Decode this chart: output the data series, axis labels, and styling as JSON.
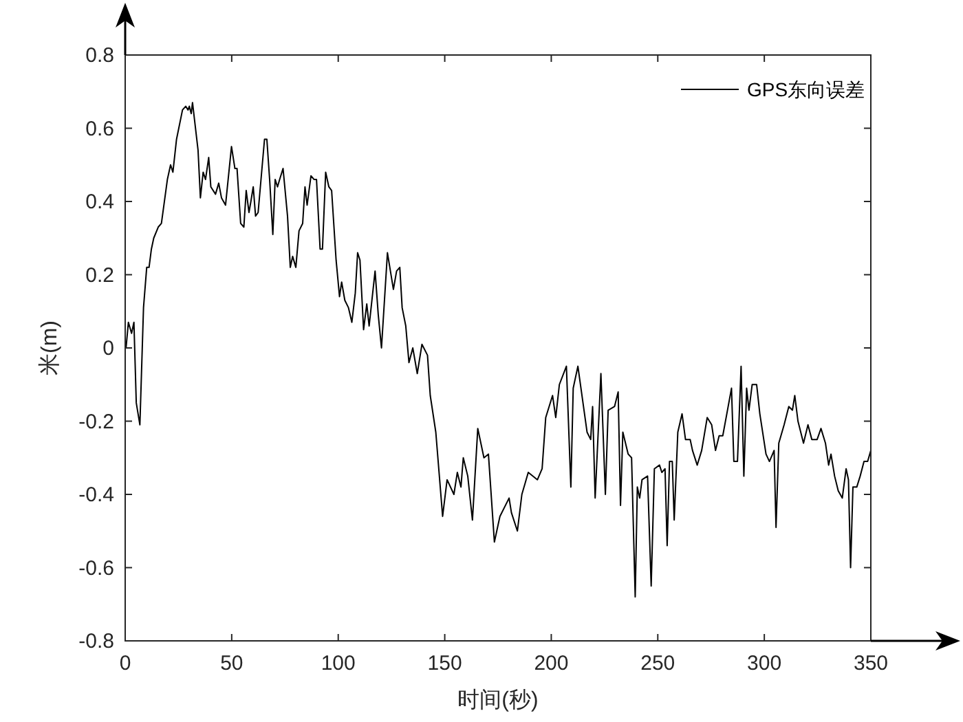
{
  "chart_data": {
    "type": "line",
    "xlabel": "时间(秒)",
    "ylabel": "米(m)",
    "xlim": [
      0,
      350
    ],
    "ylim": [
      -0.8,
      0.8
    ],
    "xticks": [
      0,
      50,
      100,
      150,
      200,
      250,
      300,
      350
    ],
    "yticks": [
      -0.8,
      -0.6,
      -0.4,
      -0.2,
      0,
      0.2,
      0.4,
      0.6,
      0.8
    ],
    "grid": false,
    "legend": "top right",
    "series": [
      {
        "name": "GPS东向误差",
        "color": "#000000",
        "x": [
          0.4,
          1.5,
          3.0,
          4.1,
          5.2,
          6.9,
          8.6,
          10.1,
          11.2,
          12.3,
          13.4,
          15.5,
          17.0,
          19.8,
          21.3,
          22.4,
          24.1,
          26.9,
          28.4,
          29.5,
          30.1,
          31.0,
          31.6,
          34.2,
          35.3,
          36.6,
          37.7,
          39.2,
          40.2,
          42.4,
          43.9,
          45.2,
          47.1,
          49.9,
          51.5,
          52.5,
          54.2,
          55.7,
          56.8,
          58.1,
          59.0,
          60.1,
          61.2,
          62.4,
          63.9,
          65.4,
          66.5,
          67.8,
          69.3,
          70.4,
          71.5,
          72.5,
          74.1,
          76.2,
          77.5,
          78.6,
          80.1,
          81.6,
          83.3,
          84.4,
          85.4,
          87.2,
          88.7,
          89.8,
          91.5,
          92.6,
          94.1,
          95.6,
          96.9,
          99.0,
          100.6,
          101.6,
          103.1,
          104.8,
          106.4,
          108.0,
          109.1,
          110.2,
          111.9,
          113.4,
          114.5,
          117.3,
          118.8,
          120.3,
          123.1,
          125.9,
          127.4,
          128.9,
          130.0,
          131.7,
          133.2,
          135.0,
          137.1,
          139.3,
          141.9,
          143.2,
          145.8,
          149.0,
          151.1,
          154.3,
          155.9,
          157.6,
          158.7,
          160.8,
          163.0,
          165.5,
          168.4,
          170.5,
          173.3,
          175.9,
          180.2,
          181.3,
          184.1,
          186.2,
          189.2,
          193.5,
          195.7,
          197.4,
          200.6,
          202.1,
          203.8,
          207.1,
          209.2,
          210.3,
          212.5,
          216.8,
          218.5,
          219.4,
          220.6,
          223.3,
          225.4,
          226.7,
          229.7,
          231.4,
          232.5,
          233.6,
          236.1,
          237.7,
          239.4,
          240.4,
          241.5,
          242.6,
          245.2,
          246.9,
          248.4,
          250.8,
          251.9,
          253.4,
          254.4,
          255.5,
          256.8,
          257.7,
          259.4,
          261.4,
          263.0,
          265.2,
          266.3,
          268.5,
          270.6,
          273.2,
          275.3,
          277.1,
          278.8,
          280.5,
          282.4,
          284.6,
          285.7,
          287.4,
          289.1,
          290.4,
          291.7,
          292.8,
          294.3,
          296.4,
          297.9,
          300.8,
          302.4,
          304.6,
          305.5,
          306.8,
          309.3,
          311.5,
          313.2,
          314.3,
          315.8,
          318.4,
          320.5,
          322.3,
          324.8,
          326.6,
          328.7,
          330.2,
          331.3,
          333.0,
          334.7,
          336.6,
          338.4,
          339.5,
          340.5,
          341.6,
          343.4,
          345.0,
          346.8,
          348.5,
          350.0
        ],
        "values": [
          0.0,
          0.07,
          0.04,
          0.07,
          -0.15,
          -0.21,
          0.11,
          0.22,
          0.22,
          0.27,
          0.3,
          0.33,
          0.34,
          0.46,
          0.5,
          0.48,
          0.57,
          0.65,
          0.66,
          0.65,
          0.66,
          0.64,
          0.67,
          0.54,
          0.41,
          0.48,
          0.46,
          0.52,
          0.44,
          0.42,
          0.45,
          0.41,
          0.39,
          0.55,
          0.49,
          0.49,
          0.34,
          0.33,
          0.43,
          0.37,
          0.4,
          0.44,
          0.36,
          0.37,
          0.47,
          0.57,
          0.57,
          0.46,
          0.31,
          0.46,
          0.44,
          0.46,
          0.49,
          0.36,
          0.22,
          0.25,
          0.22,
          0.32,
          0.34,
          0.44,
          0.39,
          0.47,
          0.46,
          0.46,
          0.27,
          0.27,
          0.48,
          0.44,
          0.43,
          0.24,
          0.14,
          0.18,
          0.13,
          0.11,
          0.07,
          0.15,
          0.26,
          0.24,
          0.05,
          0.12,
          0.06,
          0.21,
          0.09,
          0.0,
          0.26,
          0.16,
          0.21,
          0.22,
          0.11,
          0.06,
          -0.04,
          0.0,
          -0.07,
          0.01,
          -0.02,
          -0.13,
          -0.23,
          -0.46,
          -0.36,
          -0.4,
          -0.34,
          -0.38,
          -0.3,
          -0.35,
          -0.47,
          -0.22,
          -0.3,
          -0.29,
          -0.53,
          -0.46,
          -0.41,
          -0.45,
          -0.5,
          -0.4,
          -0.34,
          -0.36,
          -0.33,
          -0.19,
          -0.13,
          -0.19,
          -0.1,
          -0.05,
          -0.38,
          -0.11,
          -0.05,
          -0.23,
          -0.25,
          -0.16,
          -0.41,
          -0.07,
          -0.4,
          -0.17,
          -0.16,
          -0.12,
          -0.43,
          -0.23,
          -0.29,
          -0.3,
          -0.68,
          -0.38,
          -0.41,
          -0.36,
          -0.35,
          -0.65,
          -0.33,
          -0.32,
          -0.34,
          -0.33,
          -0.54,
          -0.31,
          -0.31,
          -0.47,
          -0.23,
          -0.18,
          -0.25,
          -0.25,
          -0.28,
          -0.32,
          -0.28,
          -0.19,
          -0.21,
          -0.28,
          -0.24,
          -0.24,
          -0.18,
          -0.11,
          -0.31,
          -0.31,
          -0.05,
          -0.35,
          -0.11,
          -0.17,
          -0.1,
          -0.1,
          -0.18,
          -0.29,
          -0.31,
          -0.28,
          -0.49,
          -0.26,
          -0.21,
          -0.16,
          -0.17,
          -0.13,
          -0.2,
          -0.26,
          -0.21,
          -0.25,
          -0.25,
          -0.22,
          -0.26,
          -0.32,
          -0.29,
          -0.35,
          -0.39,
          -0.41,
          -0.33,
          -0.36,
          -0.6,
          -0.38,
          -0.38,
          -0.35,
          -0.31,
          -0.31,
          -0.28
        ]
      }
    ]
  }
}
